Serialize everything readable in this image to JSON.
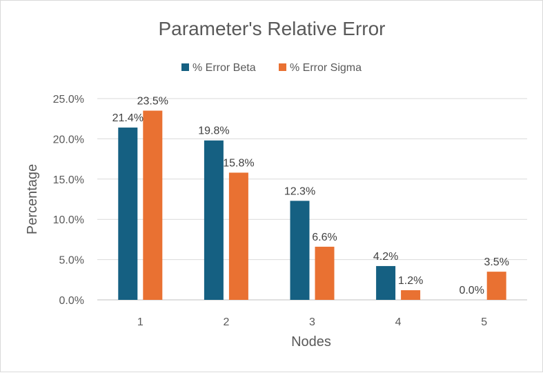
{
  "chart_data": {
    "type": "bar",
    "title": "Parameter's Relative Error",
    "xlabel": "Nodes",
    "ylabel": "Percentage",
    "categories": [
      "1",
      "2",
      "3",
      "4",
      "5"
    ],
    "series": [
      {
        "name": "% Error Beta",
        "color": "#156082",
        "values": [
          21.4,
          19.8,
          12.3,
          4.2,
          0.0
        ],
        "labels": [
          "21.4%",
          "19.8%",
          "12.3%",
          "4.2%",
          "0.0%"
        ]
      },
      {
        "name": "% Error Sigma",
        "color": "#E97132",
        "values": [
          23.5,
          15.8,
          6.6,
          1.2,
          3.5
        ],
        "labels": [
          "23.5%",
          "15.8%",
          "6.6%",
          "1.2%",
          "3.5%"
        ]
      }
    ],
    "ylim": [
      0,
      25
    ],
    "yticks": [
      0,
      5,
      10,
      15,
      20,
      25
    ],
    "ytick_labels": [
      "0.0%",
      "5.0%",
      "10.0%",
      "15.0%",
      "20.0%",
      "25.0%"
    ],
    "grid": true,
    "legend_position": "top-center"
  }
}
